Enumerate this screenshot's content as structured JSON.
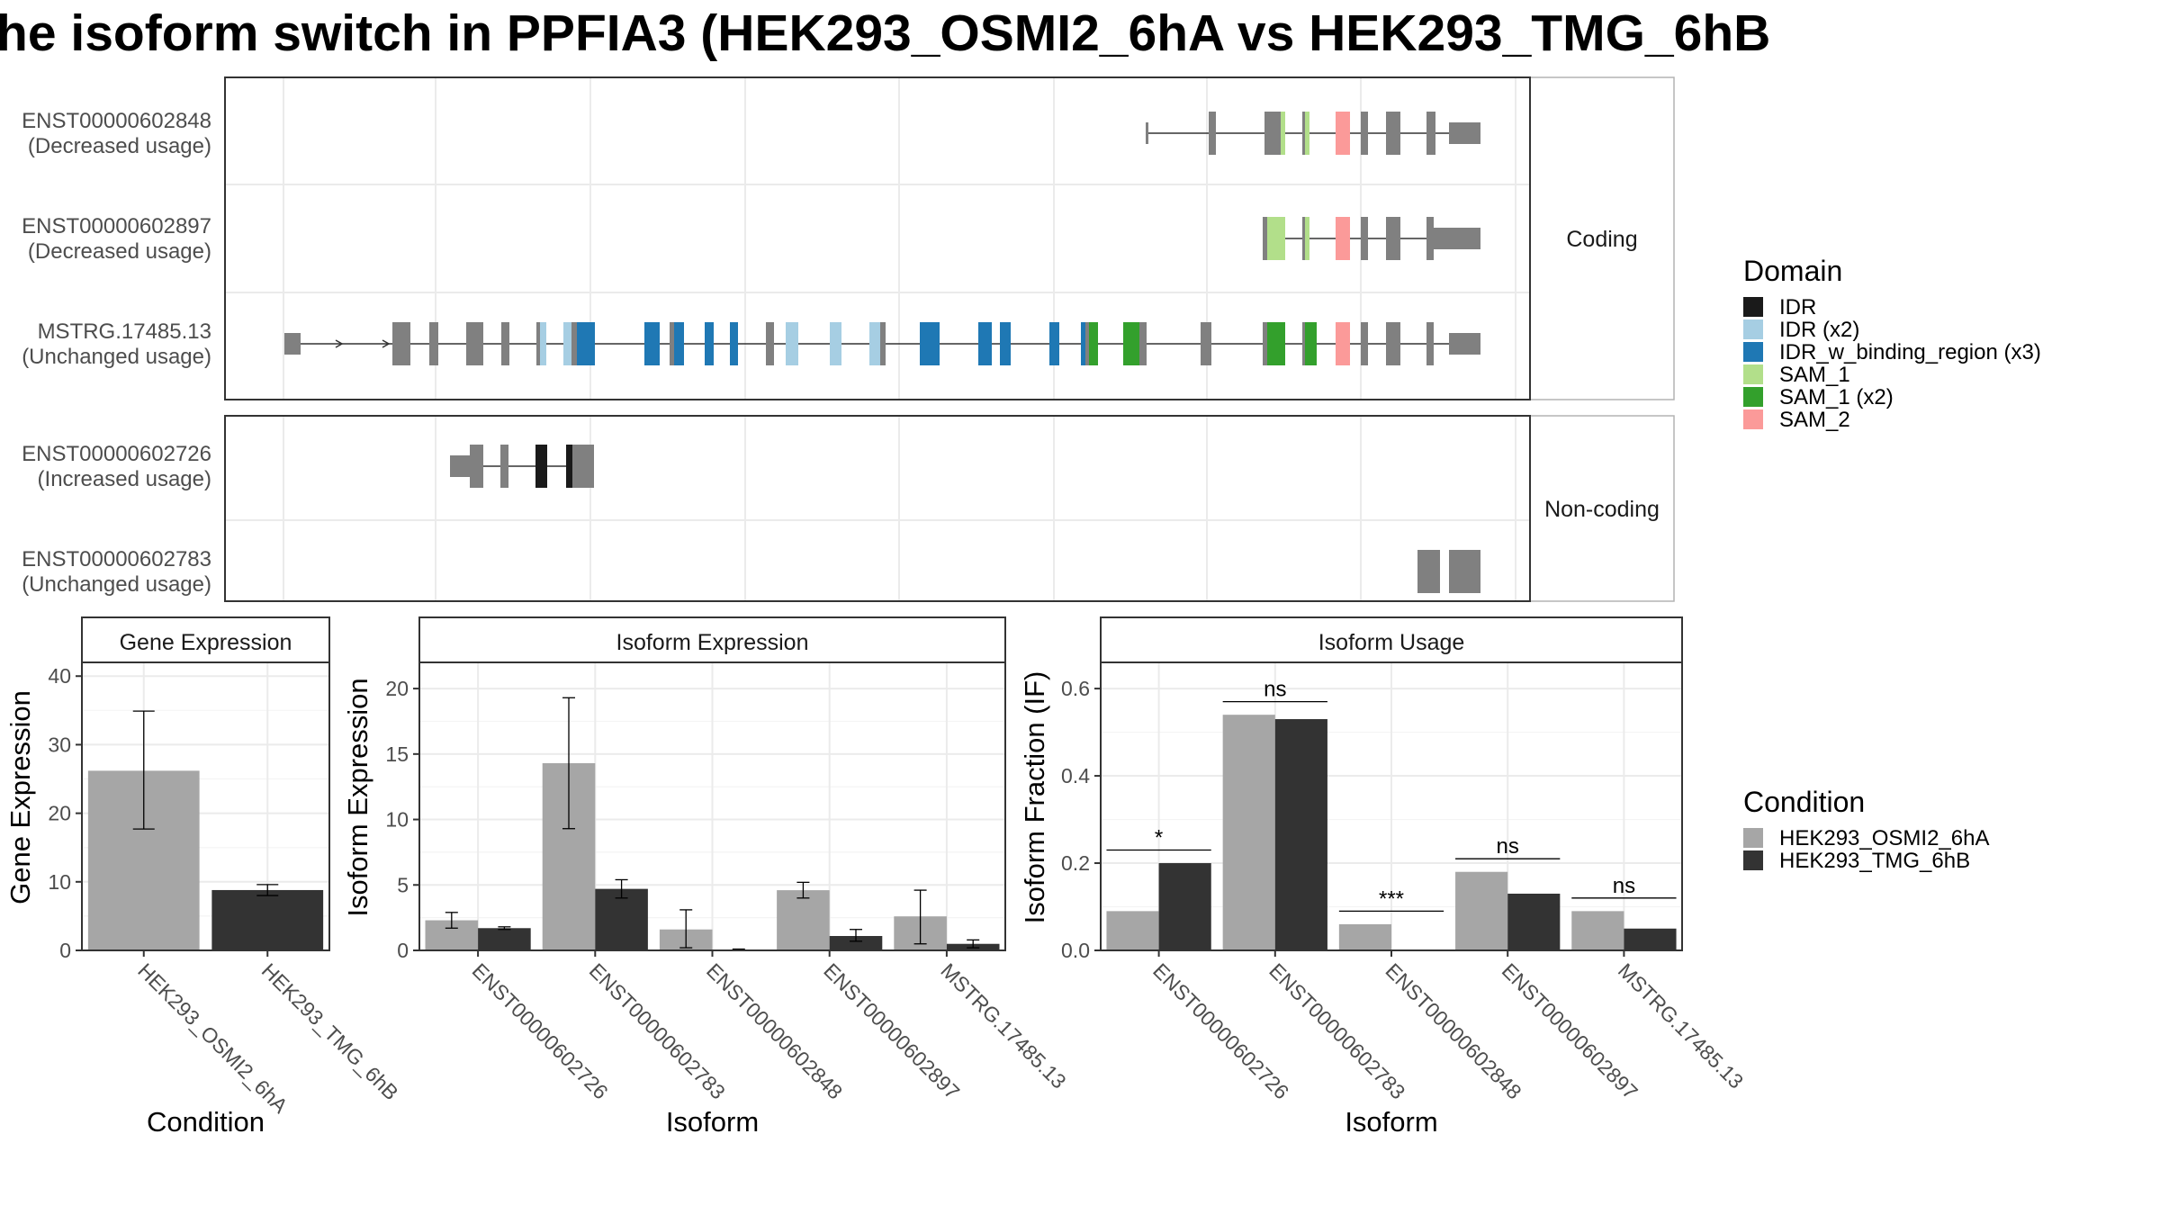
{
  "title": "he isoform switch in PPFIA3 (HEK293_OSMI2_6hA vs HEK293_TMG_6hB",
  "colors": {
    "IDR": "#1a1a1a",
    "IDR (x2)": "#a6cee3",
    "IDR_w_binding_region (x3)": "#1f78b4",
    "SAM_1": "#b2df8a",
    "SAM_1 (x2)": "#33a02c",
    "SAM_2": "#fb9a99",
    "exon": "#808080",
    "cond_a": "#a6a6a6",
    "cond_b": "#333333"
  },
  "structure": {
    "groups": [
      {
        "label": "Coding",
        "transcripts": [
          {
            "id": "ENST00000602848",
            "usage": "(Decreased usage)"
          },
          {
            "id": "ENST00000602897",
            "usage": "(Decreased usage)"
          },
          {
            "id": "MSTRG.17485.13",
            "usage": "(Unchanged usage)"
          }
        ]
      },
      {
        "label": "Non-coding",
        "transcripts": [
          {
            "id": "ENST00000602726",
            "usage": "(Increased usage)"
          },
          {
            "id": "ENST00000602783",
            "usage": "(Unchanged usage)"
          }
        ]
      }
    ]
  },
  "legend_domain": {
    "title": "Domain",
    "items": [
      {
        "label": "IDR",
        "key": "IDR"
      },
      {
        "label": "IDR (x2)",
        "key": "IDR (x2)"
      },
      {
        "label": "IDR_w_binding_region (x3)",
        "key": "IDR_w_binding_region (x3)"
      },
      {
        "label": "SAM_1",
        "key": "SAM_1"
      },
      {
        "label": "SAM_1 (x2)",
        "key": "SAM_1 (x2)"
      },
      {
        "label": "SAM_2",
        "key": "SAM_2"
      }
    ]
  },
  "legend_condition": {
    "title": "Condition",
    "items": [
      {
        "label": "HEK293_OSMI2_6hA",
        "key": "cond_a"
      },
      {
        "label": "HEK293_TMG_6hB",
        "key": "cond_b"
      }
    ]
  },
  "chart_data": [
    {
      "type": "bar",
      "panel_title": "Gene Expression",
      "xlabel": "Condition",
      "ylabel": "Gene Expression",
      "ylim": [
        0,
        42
      ],
      "yticks": [
        0,
        10,
        20,
        30,
        40
      ],
      "categories": [
        "HEK293_OSMI2_6hA",
        "HEK293_TMG_6hB"
      ],
      "values": [
        26.2,
        8.8
      ],
      "error_low": [
        17.7,
        8.0
      ],
      "error_high": [
        34.9,
        9.6
      ]
    },
    {
      "type": "bar",
      "panel_title": "Isoform Expression",
      "xlabel": "Isoform",
      "ylabel": "Isoform Expression",
      "ylim": [
        0,
        22
      ],
      "yticks": [
        0,
        5,
        10,
        15,
        20
      ],
      "categories": [
        "ENST00000602726",
        "ENST00000602783",
        "ENST00000602848",
        "ENST00000602897",
        "MSTRG.17485.13"
      ],
      "series": [
        {
          "name": "HEK293_OSMI2_6hA",
          "values": [
            2.3,
            14.3,
            1.6,
            4.6,
            2.6
          ],
          "error_low": [
            1.7,
            9.3,
            0.2,
            4.0,
            0.5
          ],
          "error_high": [
            2.9,
            19.3,
            3.1,
            5.2,
            4.6
          ]
        },
        {
          "name": "HEK293_TMG_6hB",
          "values": [
            1.7,
            4.7,
            0.0,
            1.1,
            0.5
          ],
          "error_low": [
            1.6,
            4.0,
            0.0,
            0.7,
            0.2
          ],
          "error_high": [
            1.8,
            5.4,
            0.1,
            1.6,
            0.8
          ]
        }
      ]
    },
    {
      "type": "bar",
      "panel_title": "Isoform Usage",
      "xlabel": "Isoform",
      "ylabel": "Isoform Fraction (IF)",
      "ylim": [
        0,
        0.66
      ],
      "yticks": [
        "0.0",
        "0.2",
        "0.4",
        "0.6"
      ],
      "categories": [
        "ENST00000602726",
        "ENST00000602783",
        "ENST00000602848",
        "ENST00000602897",
        "MSTRG.17485.13"
      ],
      "series": [
        {
          "name": "HEK293_OSMI2_6hA",
          "values": [
            0.09,
            0.54,
            0.06,
            0.18,
            0.09
          ]
        },
        {
          "name": "HEK293_TMG_6hB",
          "values": [
            0.2,
            0.53,
            0.0,
            0.13,
            0.05
          ]
        }
      ],
      "significance": [
        "*",
        "ns",
        "***",
        "ns",
        "ns"
      ]
    }
  ]
}
